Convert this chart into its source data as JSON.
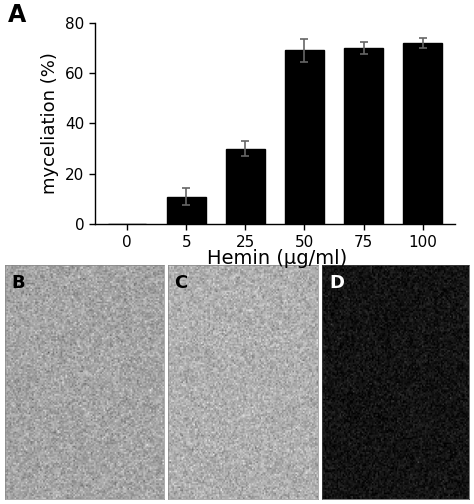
{
  "categories": [
    "0",
    "5",
    "25",
    "50",
    "75",
    "100"
  ],
  "values": [
    0,
    11,
    30,
    69,
    70,
    72
  ],
  "errors": [
    0,
    3.5,
    3.0,
    4.5,
    2.5,
    2.0
  ],
  "bar_color": "#000000",
  "bar_width": 0.65,
  "ylabel": "myceliation (%)",
  "xlabel": "Hemin (μg/ml)",
  "ylim": [
    0,
    80
  ],
  "yticks": [
    0,
    20,
    40,
    60,
    80
  ],
  "panel_label": "A",
  "label_fontsize": 13,
  "tick_fontsize": 11,
  "figure_bgcolor": "#ffffff",
  "axes_bgcolor": "#ffffff",
  "error_capsize": 3,
  "error_color": "#666666",
  "error_linewidth": 1.2,
  "img_b_color": "#a0a0a0",
  "img_c_color": "#b8b8b8",
  "img_d_color": "#1a1a1a",
  "panel_b_label_color": "#000000",
  "panel_c_label_color": "#000000",
  "panel_d_label_color": "#ffffff"
}
